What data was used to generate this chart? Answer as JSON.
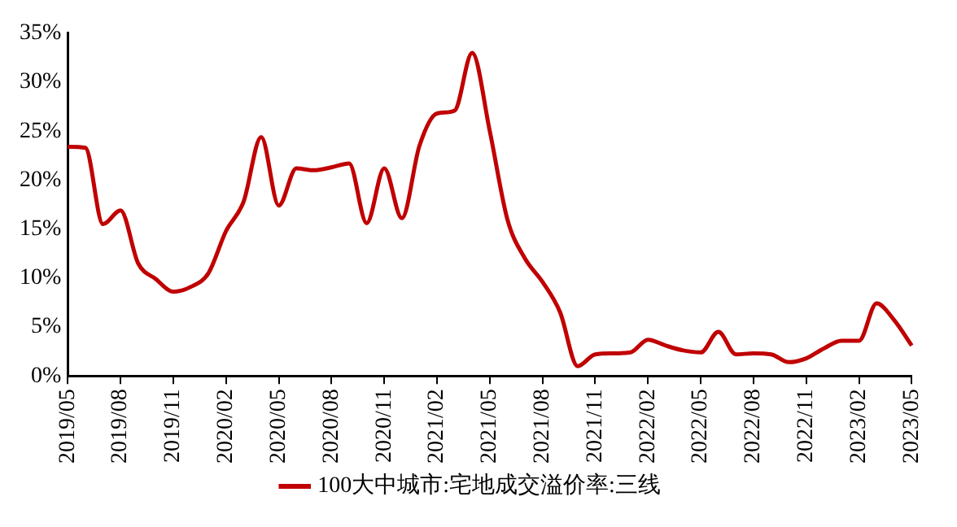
{
  "chart_data": {
    "type": "line",
    "categories": [
      "2019/05",
      null,
      null,
      "2019/08",
      null,
      null,
      "2019/11",
      null,
      null,
      "2020/02",
      null,
      null,
      "2020/05",
      null,
      null,
      "2020/08",
      null,
      null,
      "2020/11",
      null,
      null,
      "2021/02",
      null,
      null,
      "2021/05",
      null,
      null,
      "2021/08",
      null,
      null,
      "2021/11",
      null,
      null,
      "2022/02",
      null,
      null,
      "2022/05",
      null,
      null,
      "2022/08",
      null,
      null,
      "2022/11",
      null,
      null,
      "2023/02",
      null,
      null,
      "2023/05"
    ],
    "series": [
      {
        "name": "100大中城市:宅地成交溢价率:三线",
        "color": "#c00000",
        "values": [
          23.4,
          23.3,
          15.5,
          16.9,
          11.5,
          9.9,
          8.6,
          9.1,
          10.5,
          14.8,
          17.8,
          24.4,
          17.4,
          21.2,
          21,
          21.3,
          21.7,
          15.6,
          21.2,
          16.1,
          23.5,
          26.8,
          27.1,
          33,
          25,
          16,
          12,
          9.6,
          6.5,
          1,
          2.2,
          2.3,
          2.4,
          3.7,
          3.1,
          2.6,
          2.4,
          4.5,
          2.2,
          2.3,
          2.2,
          1.4,
          1.8,
          2.8,
          3.6,
          3.6,
          7.4,
          5.7,
          3.1
        ]
      }
    ],
    "ylim": [
      0,
      35
    ],
    "yticks": [
      {
        "value": 0,
        "label": "0%"
      },
      {
        "value": 5,
        "label": "5%"
      },
      {
        "value": 10,
        "label": "10%"
      },
      {
        "value": 15,
        "label": "15%"
      },
      {
        "value": 20,
        "label": "20%"
      },
      {
        "value": 25,
        "label": "25%"
      },
      {
        "value": 30,
        "label": "30%"
      },
      {
        "value": 35,
        "label": "35%"
      }
    ],
    "grid": false,
    "legend": "bottom",
    "marker": "none",
    "line_style": "solid"
  }
}
